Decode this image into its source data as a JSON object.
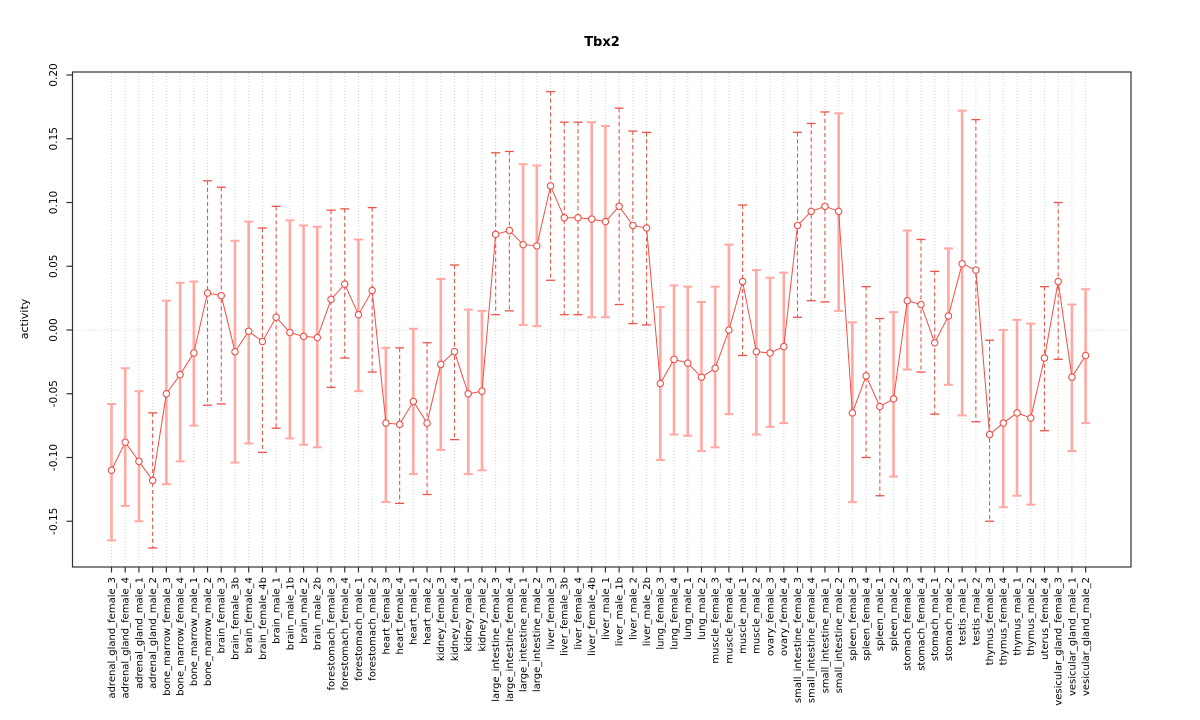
{
  "chart_data": {
    "type": "scatter",
    "title": "Tbx2",
    "ylabel": "activity",
    "xlabel": "",
    "ylim": [
      -0.184,
      0.202
    ],
    "yticks": [
      -0.15,
      -0.1,
      -0.05,
      0.0,
      0.05,
      0.1,
      0.15,
      0.2
    ],
    "ytick_labels": [
      "-0.15",
      "-0.10",
      "-0.05",
      "0.00",
      "0.05",
      "0.10",
      "0.15",
      "0.20"
    ],
    "grid": {
      "vertical_per_category": true,
      "horizontal_zero_line": true,
      "style": "dotted"
    },
    "legend": null,
    "point_marker": "open-circle",
    "categories": [
      "adrenal_gland_female_3",
      "adrenal_gland_female_4",
      "adrenal_gland_male_1",
      "adrenal_gland_male_2",
      "bone_marrow_female_3",
      "bone_marrow_female_4",
      "bone_marrow_male_1",
      "bone_marrow_male_2",
      "brain_female_3",
      "brain_female_3b",
      "brain_female_4",
      "brain_female_4b",
      "brain_male_1",
      "brain_male_1b",
      "brain_male_2",
      "brain_male_2b",
      "forestomach_female_3",
      "forestomach_female_4",
      "forestomach_male_1",
      "forestomach_male_2",
      "heart_female_3",
      "heart_female_4",
      "heart_male_1",
      "heart_male_2",
      "kidney_female_3",
      "kidney_female_4",
      "kidney_male_1",
      "kidney_male_2",
      "large_intestine_female_3",
      "large_intestine_female_4",
      "large_intestine_male_1",
      "large_intestine_male_2",
      "liver_female_3",
      "liver_female_3b",
      "liver_female_4",
      "liver_female_4b",
      "liver_male_1",
      "liver_male_1b",
      "liver_male_2",
      "liver_male_2b",
      "lung_female_3",
      "lung_female_4",
      "lung_male_1",
      "lung_male_2",
      "muscle_female_3",
      "muscle_female_4",
      "muscle_male_1",
      "muscle_male_2",
      "ovary_female_3",
      "ovary_female_4",
      "small_intestine_female_3",
      "small_intestine_female_4",
      "small_intestine_male_1",
      "small_intestine_male_2",
      "spleen_female_3",
      "spleen_female_4",
      "spleen_male_1",
      "spleen_male_2",
      "stomach_female_3",
      "stomach_female_4",
      "stomach_male_1",
      "stomach_male_2",
      "testis_male_1",
      "testis_male_2",
      "thymus_female_3",
      "thymus_female_4",
      "thymus_male_1",
      "thymus_male_2",
      "uterus_female_4",
      "vesicular_gland_female_3",
      "vesicular_gland_male_1",
      "vesicular_gland_male_2"
    ],
    "series": [
      {
        "name": "activity",
        "values": [
          -0.11,
          -0.088,
          -0.103,
          -0.118,
          -0.05,
          -0.035,
          -0.018,
          0.029,
          0.027,
          -0.017,
          -0.001,
          -0.009,
          0.01,
          -0.002,
          -0.005,
          -0.006,
          0.024,
          0.036,
          0.012,
          0.031,
          -0.073,
          -0.074,
          -0.056,
          -0.073,
          -0.027,
          -0.017,
          -0.05,
          -0.048,
          0.075,
          0.078,
          0.067,
          0.066,
          0.113,
          0.088,
          0.088,
          0.087,
          0.085,
          0.097,
          0.082,
          0.08,
          -0.042,
          -0.023,
          -0.026,
          -0.037,
          -0.03,
          0.0,
          0.038,
          -0.017,
          -0.018,
          -0.013,
          0.082,
          0.093,
          0.097,
          0.093,
          -0.065,
          -0.036,
          -0.06,
          -0.054,
          0.023,
          0.02,
          -0.01,
          0.011,
          0.052,
          0.047,
          -0.082,
          -0.073,
          -0.065,
          -0.069,
          -0.022,
          0.038,
          -0.037,
          -0.02
        ],
        "error_low": [
          -0.165,
          -0.138,
          -0.15,
          -0.171,
          -0.121,
          -0.103,
          -0.075,
          -0.059,
          -0.058,
          -0.104,
          -0.089,
          -0.096,
          -0.077,
          -0.085,
          -0.09,
          -0.092,
          -0.045,
          -0.022,
          -0.048,
          -0.033,
          -0.135,
          -0.136,
          -0.113,
          -0.129,
          -0.094,
          -0.086,
          -0.113,
          -0.11,
          0.012,
          0.015,
          0.004,
          0.003,
          0.039,
          0.012,
          0.012,
          0.01,
          0.01,
          0.02,
          0.005,
          0.004,
          -0.102,
          -0.082,
          -0.083,
          -0.095,
          -0.092,
          -0.066,
          -0.02,
          -0.082,
          -0.076,
          -0.073,
          0.01,
          0.023,
          0.022,
          0.015,
          -0.135,
          -0.1,
          -0.13,
          -0.115,
          -0.031,
          -0.033,
          -0.066,
          -0.043,
          -0.067,
          -0.072,
          -0.15,
          -0.139,
          -0.13,
          -0.137,
          -0.079,
          -0.023,
          -0.095,
          -0.073
        ],
        "error_high": [
          -0.058,
          -0.03,
          -0.048,
          -0.065,
          0.023,
          0.037,
          0.038,
          0.117,
          0.112,
          0.07,
          0.085,
          0.08,
          0.097,
          0.086,
          0.082,
          0.081,
          0.094,
          0.095,
          0.071,
          0.096,
          -0.014,
          -0.014,
          0.001,
          -0.01,
          0.04,
          0.051,
          0.016,
          0.015,
          0.139,
          0.14,
          0.13,
          0.129,
          0.187,
          0.163,
          0.163,
          0.163,
          0.16,
          0.174,
          0.156,
          0.155,
          0.018,
          0.035,
          0.034,
          0.022,
          0.034,
          0.067,
          0.098,
          0.047,
          0.041,
          0.045,
          0.155,
          0.162,
          0.171,
          0.17,
          0.006,
          0.034,
          0.009,
          0.014,
          0.078,
          0.071,
          0.046,
          0.064,
          0.172,
          0.165,
          -0.008,
          0.0,
          0.008,
          0.005,
          0.034,
          0.1,
          0.02,
          0.032
        ],
        "bar_style": [
          "light",
          "light",
          "light",
          "dashed",
          "light",
          "light",
          "light",
          "dashed",
          "dashed",
          "light",
          "light",
          "dashed",
          "dashed",
          "light",
          "light",
          "light",
          "dashed",
          "dashed",
          "light",
          "dashed",
          "light",
          "dashed",
          "light",
          "dashed",
          "light",
          "dashed",
          "light",
          "light",
          "dashed",
          "dashed",
          "light",
          "light",
          "dashed",
          "dashed",
          "dashed",
          "light",
          "light",
          "dashed",
          "dashed",
          "dashed",
          "light",
          "light",
          "light",
          "light",
          "light",
          "light",
          "dashed",
          "light",
          "light",
          "light",
          "dashed",
          "dashed",
          "dashed",
          "light",
          "light",
          "dashed",
          "dashed",
          "light",
          "light",
          "dashed",
          "dashed",
          "light",
          "light",
          "dashed",
          "dashed",
          "light",
          "light",
          "light",
          "dashed",
          "dashed",
          "light",
          "light"
        ]
      }
    ],
    "colors": {
      "point": "#ef4e45",
      "line": "#ef4e45",
      "error_bar_dashed": "#ea544b",
      "error_bar_light": "#ffa9a2",
      "gridline": "#d4d4d4",
      "zero_line": "#e6caca",
      "axis": "#333333",
      "text": "#000000",
      "background": "#ffffff"
    }
  }
}
